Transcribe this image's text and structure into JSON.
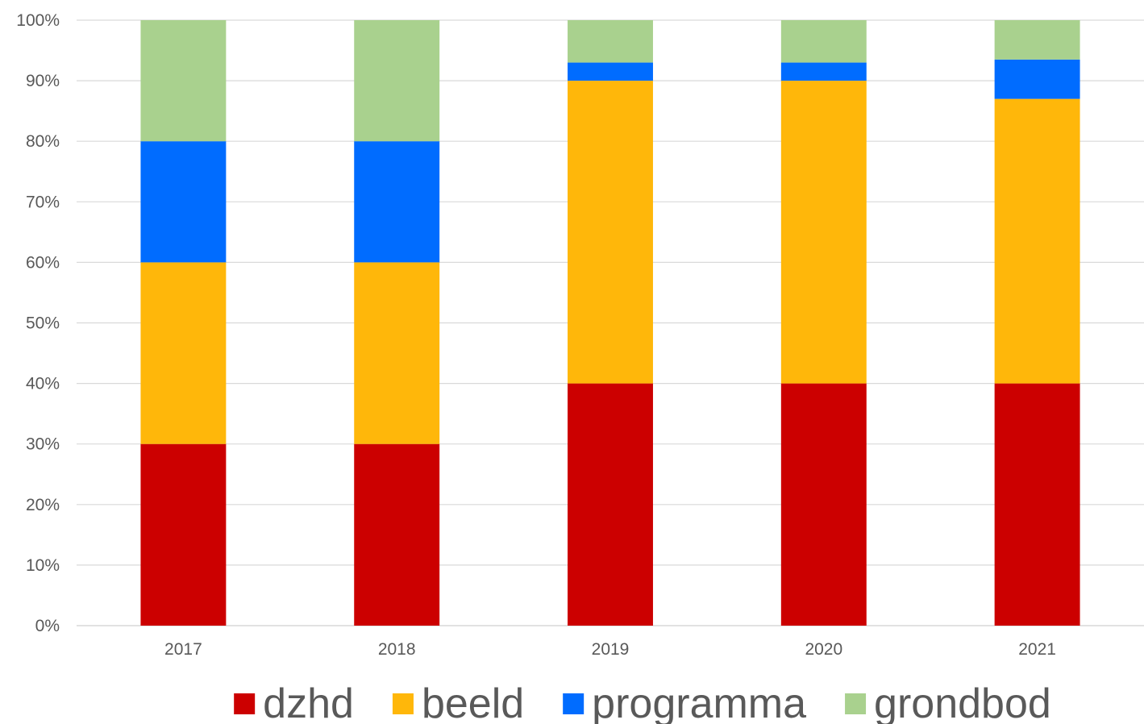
{
  "chart_data": {
    "type": "bar",
    "stacked": true,
    "title": "",
    "xlabel": "",
    "ylabel": "",
    "categories": [
      "2017",
      "2018",
      "2019",
      "2020",
      "2021"
    ],
    "ylim": [
      0,
      100
    ],
    "y_ticks": [
      "0%",
      "10%",
      "20%",
      "30%",
      "40%",
      "50%",
      "60%",
      "70%",
      "80%",
      "90%",
      "100%"
    ],
    "grid": true,
    "legend_position": "bottom",
    "series": [
      {
        "name": "dzhd",
        "color": "#cc0000",
        "values": [
          30,
          30,
          40,
          40,
          40
        ]
      },
      {
        "name": "beeld",
        "color": "#ffb70a",
        "values": [
          30,
          30,
          50,
          50,
          47
        ]
      },
      {
        "name": "programma",
        "color": "#006cff",
        "values": [
          20,
          20,
          3,
          3,
          6.5
        ]
      },
      {
        "name": "grondbod",
        "color": "#a9d18e",
        "values": [
          20,
          20,
          7,
          7,
          6.5
        ]
      }
    ]
  }
}
